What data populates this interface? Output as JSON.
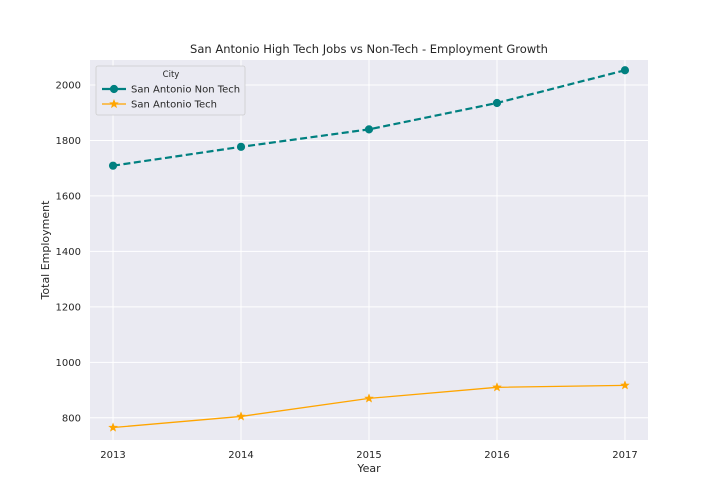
{
  "chart_data": {
    "type": "line",
    "title": "San Antonio High Tech Jobs vs Non-Tech - Employment Growth",
    "xlabel": "Year",
    "ylabel": "Total Employment",
    "x": [
      2013,
      2014,
      2015,
      2016,
      2017
    ],
    "xticks": [
      "2013",
      "2014",
      "2015",
      "2016",
      "2017"
    ],
    "xlim": [
      2012.82,
      2017.18
    ],
    "ylim": [
      720,
      2090
    ],
    "yticks": [
      800,
      1000,
      1200,
      1400,
      1600,
      1800,
      2000
    ],
    "grid": true,
    "legend": {
      "title": "City",
      "placement": "top-left"
    },
    "series": [
      {
        "name": "San Antonio Non Tech",
        "values": [
          1709,
          1777,
          1840,
          1935,
          2053
        ],
        "color": "#008080",
        "style": "dashed",
        "marker": "circle"
      },
      {
        "name": "San Antonio Tech",
        "values": [
          765,
          805,
          870,
          910,
          917
        ],
        "color": "#FFA500",
        "style": "solid",
        "marker": "star"
      }
    ]
  },
  "colors": {
    "plot_background": "#EAEAF2",
    "grid": "#FFFFFF",
    "text": "#262626"
  }
}
